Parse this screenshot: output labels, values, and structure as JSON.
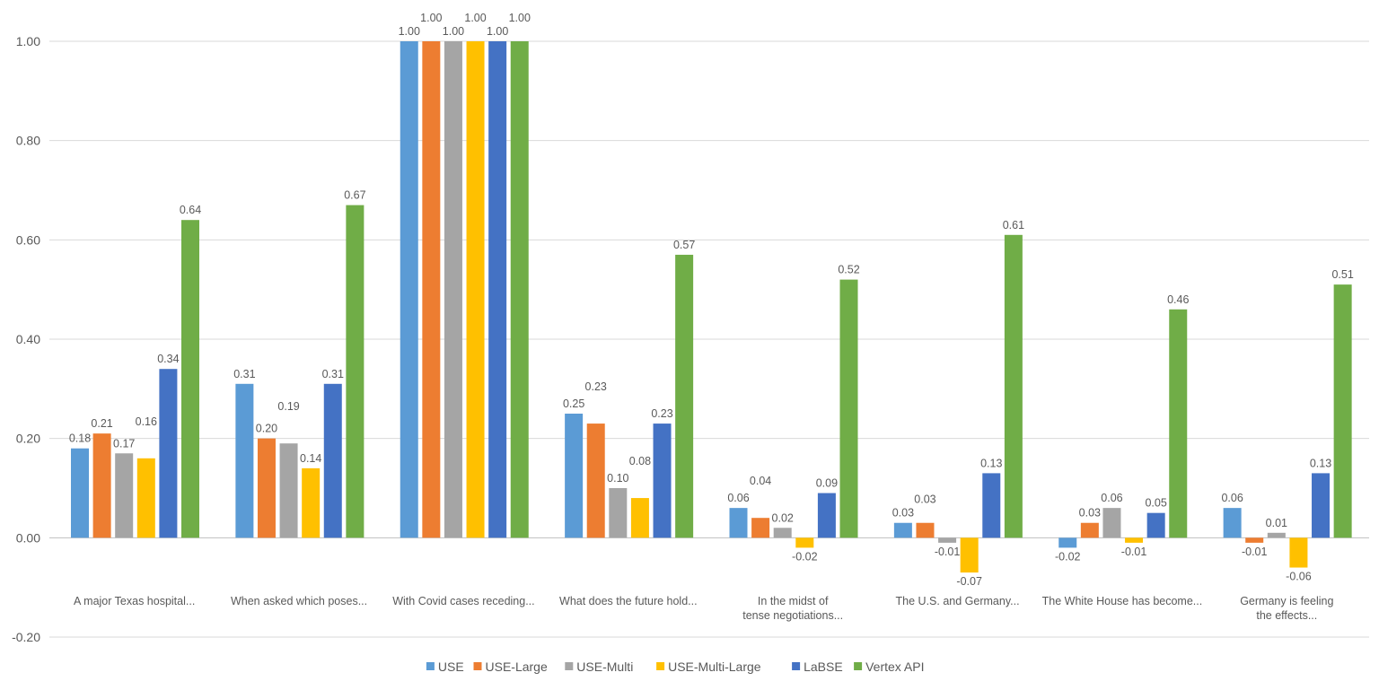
{
  "chart_data": {
    "type": "bar",
    "title": "",
    "xlabel": "",
    "ylabel": "",
    "ylim": [
      -0.2,
      1.0
    ],
    "yticks": [
      "1.00",
      "0.80",
      "0.60",
      "0.40",
      "0.20",
      "0.00",
      "-0.20"
    ],
    "ytick_values": [
      1.0,
      0.8,
      0.6,
      0.4,
      0.2,
      0.0,
      -0.2
    ],
    "grid": true,
    "legend_position": "bottom",
    "categories": [
      "A major Texas hospital...",
      "When asked which poses...",
      "With Covid cases receding...",
      "What does the future hold...",
      "In the midst of tense negotiations...",
      "The U.S. and Germany...",
      "The White House has become...",
      "Germany is feeling the effects..."
    ],
    "series": [
      {
        "name": "USE",
        "color": "#5B9BD5",
        "values": [
          0.18,
          0.31,
          1.0,
          0.25,
          0.06,
          0.03,
          -0.02,
          0.06
        ]
      },
      {
        "name": "USE-Large",
        "color": "#ED7D31",
        "values": [
          0.21,
          0.2,
          1.0,
          0.23,
          0.04,
          0.03,
          0.03,
          -0.01
        ]
      },
      {
        "name": "USE-Multi",
        "color": "#A5A5A5",
        "values": [
          0.17,
          0.19,
          1.0,
          0.1,
          0.02,
          -0.01,
          0.06,
          0.01
        ]
      },
      {
        "name": "USE-Multi-Large",
        "color": "#FFC000",
        "values": [
          0.16,
          0.14,
          1.0,
          0.08,
          -0.02,
          -0.07,
          -0.01,
          -0.06
        ]
      },
      {
        "name": "LaBSE",
        "color": "#4472C4",
        "values": [
          0.34,
          0.31,
          1.0,
          0.23,
          0.09,
          0.13,
          0.05,
          0.13
        ]
      },
      {
        "name": "Vertex API",
        "color": "#70AD47",
        "values": [
          0.64,
          0.67,
          1.0,
          0.57,
          0.52,
          0.61,
          0.46,
          0.51
        ]
      }
    ]
  }
}
